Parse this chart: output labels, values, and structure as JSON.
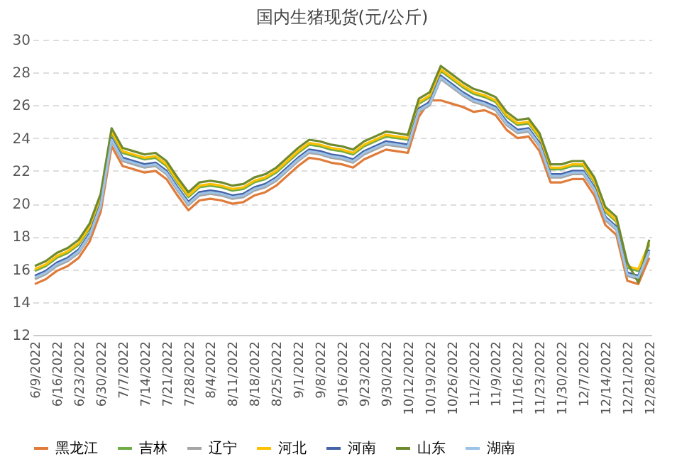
{
  "chart_data": {
    "type": "line",
    "title": "国内生猪现货(元/公斤)",
    "categories": [
      "6/9/2022",
      null,
      "6/16/2022",
      null,
      "6/23/2022",
      null,
      "6/30/2022",
      null,
      "7/7/2022",
      null,
      "7/14/2022",
      null,
      "7/21/2022",
      null,
      "7/28/2022",
      null,
      "8/4/2022",
      null,
      "8/11/2022",
      null,
      "8/18/2022",
      null,
      "8/25/2022",
      null,
      "9/1/2022",
      null,
      "9/8/2022",
      null,
      "9/16/2022",
      null,
      "9/23/2022",
      null,
      "9/30/2022",
      null,
      "10/12/2022",
      null,
      "10/19/2022",
      null,
      "10/26/2022",
      null,
      "11/2/2022",
      null,
      "11/9/2022",
      null,
      "11/16/2022",
      null,
      "11/23/2022",
      null,
      "11/30/2022",
      null,
      "12/7/2022",
      null,
      "12/14/2022",
      null,
      "12/21/2022",
      null,
      "12/28/2022"
    ],
    "series": [
      {
        "name": "黑龙江",
        "color": "#e07b39",
        "values": [
          15.1,
          15.4,
          15.9,
          16.2,
          16.7,
          17.7,
          19.5,
          23.5,
          22.3,
          22.1,
          21.9,
          22.0,
          21.5,
          20.5,
          19.6,
          20.2,
          20.3,
          20.2,
          20.0,
          20.1,
          20.5,
          20.7,
          21.1,
          21.7,
          22.3,
          22.8,
          22.7,
          22.5,
          22.4,
          22.2,
          22.7,
          23.0,
          23.3,
          23.2,
          23.1,
          25.3,
          26.3,
          26.3,
          26.1,
          25.9,
          25.6,
          25.7,
          25.4,
          24.5,
          24.0,
          24.1,
          23.2,
          21.3,
          21.3,
          21.5,
          21.5,
          20.5,
          18.7,
          18.1,
          15.3,
          15.1,
          16.7
        ]
      },
      {
        "name": "吉林",
        "color": "#70ad47",
        "values": [
          15.9,
          16.2,
          16.7,
          17.0,
          17.5,
          18.5,
          20.3,
          24.3,
          23.1,
          22.9,
          22.7,
          22.8,
          22.3,
          21.3,
          20.4,
          21.0,
          21.1,
          21.0,
          20.8,
          20.9,
          21.3,
          21.5,
          21.9,
          22.5,
          23.1,
          23.6,
          23.5,
          23.3,
          23.2,
          23.0,
          23.5,
          23.8,
          24.1,
          24.0,
          23.9,
          26.1,
          26.5,
          28.1,
          27.6,
          27.1,
          26.7,
          26.5,
          26.2,
          25.3,
          24.8,
          24.9,
          24.0,
          22.1,
          22.1,
          22.3,
          22.3,
          21.3,
          19.5,
          18.9,
          16.1,
          15.9,
          17.5
        ]
      },
      {
        "name": "辽宁",
        "color": "#a5a5a5",
        "values": [
          15.4,
          15.7,
          16.2,
          16.5,
          17.0,
          18.0,
          19.8,
          23.8,
          22.6,
          22.4,
          22.2,
          22.3,
          21.8,
          20.8,
          19.9,
          20.5,
          20.6,
          20.5,
          20.3,
          20.4,
          20.8,
          21.0,
          21.4,
          22.0,
          22.6,
          23.1,
          23.0,
          22.8,
          22.7,
          22.5,
          23.0,
          23.3,
          23.6,
          23.5,
          23.4,
          25.6,
          26.0,
          27.6,
          27.1,
          26.6,
          26.2,
          26.0,
          25.7,
          24.8,
          24.3,
          24.4,
          23.5,
          21.6,
          21.6,
          21.8,
          21.8,
          20.8,
          19.0,
          18.4,
          15.6,
          15.4,
          17.0
        ]
      },
      {
        "name": "河北",
        "color": "#ffc000",
        "values": [
          16.0,
          16.3,
          16.8,
          17.1,
          17.6,
          18.6,
          20.4,
          24.4,
          23.2,
          23.0,
          22.8,
          22.9,
          22.4,
          21.4,
          20.5,
          21.1,
          21.2,
          21.1,
          20.9,
          21.0,
          21.4,
          21.6,
          22.0,
          22.6,
          23.2,
          23.7,
          23.6,
          23.4,
          23.3,
          23.1,
          23.6,
          23.9,
          24.2,
          24.1,
          24.0,
          26.2,
          26.6,
          28.2,
          27.7,
          27.2,
          26.8,
          26.6,
          26.3,
          25.4,
          24.9,
          25.0,
          24.1,
          22.2,
          22.2,
          22.4,
          22.4,
          21.4,
          19.6,
          19.0,
          16.2,
          16.0,
          17.6
        ]
      },
      {
        "name": "河南",
        "color": "#4463a8",
        "values": [
          15.6,
          15.9,
          16.4,
          16.7,
          17.2,
          18.2,
          20.0,
          24.0,
          22.8,
          22.6,
          22.4,
          22.5,
          22.0,
          21.0,
          20.1,
          20.7,
          20.8,
          20.7,
          20.5,
          20.6,
          21.0,
          21.2,
          21.6,
          22.2,
          22.8,
          23.3,
          23.2,
          23.0,
          22.9,
          22.7,
          23.2,
          23.5,
          23.8,
          23.7,
          23.6,
          25.8,
          26.2,
          27.8,
          27.3,
          26.8,
          26.4,
          26.2,
          25.9,
          25.0,
          24.5,
          24.6,
          23.7,
          21.8,
          21.8,
          22.0,
          22.0,
          21.0,
          19.2,
          18.6,
          15.8,
          15.6,
          17.2
        ]
      },
      {
        "name": "山东",
        "color": "#6e8a2e",
        "values": [
          16.2,
          16.5,
          17.0,
          17.3,
          17.8,
          18.8,
          20.6,
          24.6,
          23.4,
          23.2,
          23.0,
          23.1,
          22.6,
          21.6,
          20.7,
          21.3,
          21.4,
          21.3,
          21.1,
          21.2,
          21.6,
          21.8,
          22.2,
          22.8,
          23.4,
          23.9,
          23.8,
          23.6,
          23.5,
          23.3,
          23.8,
          24.1,
          24.4,
          24.3,
          24.2,
          26.4,
          26.8,
          28.4,
          27.9,
          27.4,
          27.0,
          26.8,
          26.5,
          25.6,
          25.1,
          25.2,
          24.3,
          22.4,
          22.4,
          22.6,
          22.6,
          21.6,
          19.8,
          19.2,
          16.4,
          15.2,
          17.8
        ]
      },
      {
        "name": "湖南",
        "color": "#9dc3e6",
        "values": [
          15.5,
          15.8,
          16.3,
          16.6,
          17.1,
          18.1,
          19.9,
          23.9,
          22.7,
          22.5,
          22.3,
          22.4,
          21.9,
          20.9,
          20.0,
          20.6,
          20.7,
          20.6,
          20.4,
          20.5,
          20.9,
          21.1,
          21.5,
          22.1,
          22.7,
          23.2,
          23.1,
          22.9,
          22.8,
          22.6,
          23.1,
          23.4,
          23.7,
          23.6,
          23.5,
          25.7,
          26.1,
          27.7,
          27.2,
          26.7,
          26.3,
          26.1,
          25.8,
          24.9,
          24.4,
          24.5,
          23.6,
          21.7,
          21.7,
          21.9,
          21.9,
          20.9,
          19.1,
          18.5,
          15.7,
          15.5,
          17.1
        ]
      }
    ],
    "ylim": [
      12,
      30
    ],
    "yticks": [
      12,
      14,
      16,
      18,
      20,
      22,
      24,
      26,
      28,
      30
    ],
    "grid": "y",
    "legend": "bottom",
    "marker": "none",
    "line_style": "solid"
  }
}
